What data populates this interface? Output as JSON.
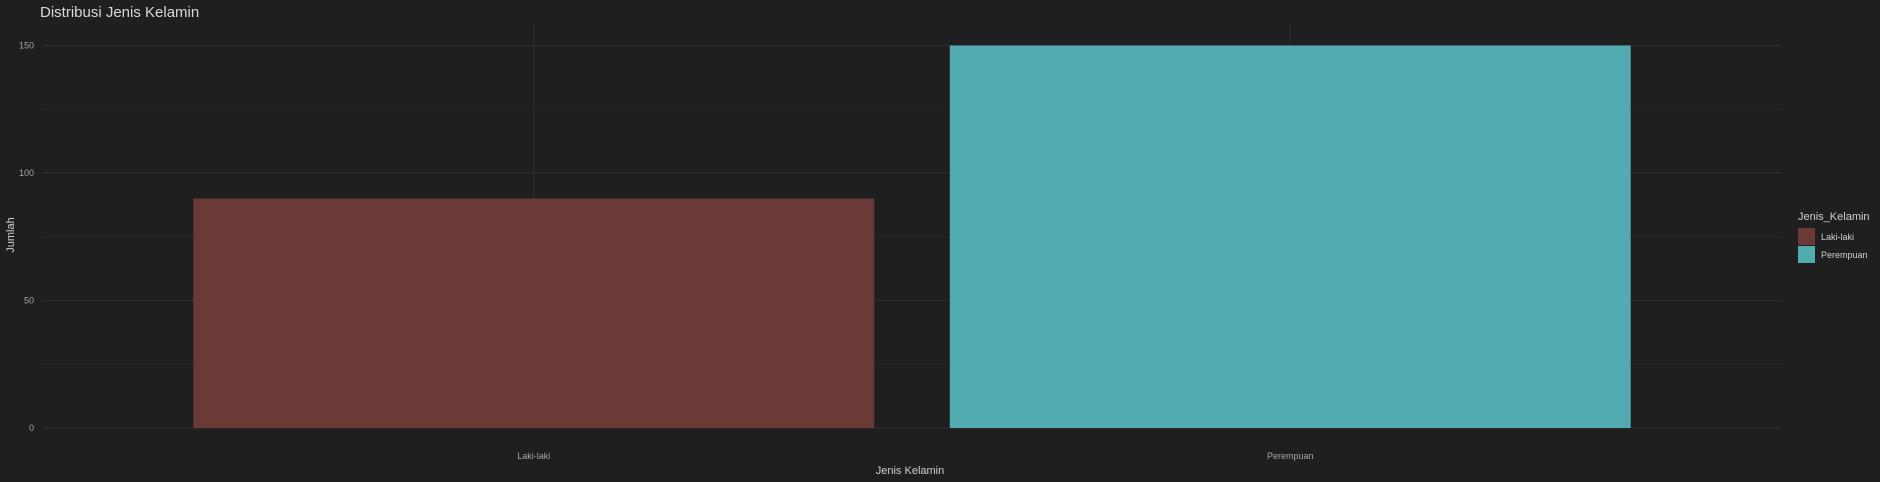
{
  "chart_data": {
    "type": "bar",
    "title": "Distribusi Jenis Kelamin",
    "xlabel": "Jenis Kelamin",
    "ylabel": "Jumlah",
    "categories": [
      "Laki-laki",
      "Perempuan"
    ],
    "values": [
      90,
      150
    ],
    "colors": [
      "#6b3a36",
      "#52abb0"
    ],
    "ylim": [
      0,
      160
    ],
    "yticks": [
      0,
      50,
      100,
      150
    ],
    "grid": true,
    "legend": {
      "title": "Jenis_Kelamin",
      "position": "right",
      "entries": [
        {
          "label": "Laki-laki",
          "color": "#6b3a36"
        },
        {
          "label": "Perempuan",
          "color": "#52abb0"
        }
      ]
    },
    "background": "#1f1f1f"
  }
}
